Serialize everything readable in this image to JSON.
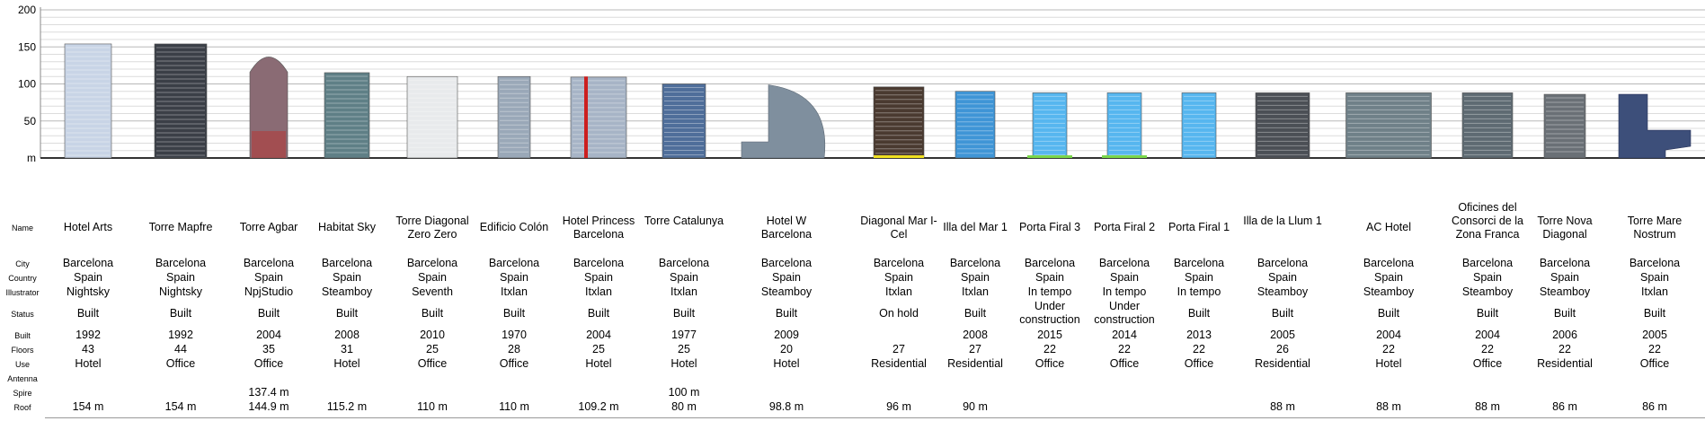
{
  "chart_data": {
    "type": "bar",
    "y_axis": {
      "ylim": [
        0,
        200
      ],
      "ticks": [
        "0",
        "50",
        "100",
        "150",
        "200"
      ],
      "zero_label": "m",
      "unit": "m"
    },
    "grid": true,
    "row_labels": [
      "Name",
      "City",
      "Country",
      "Illustrator",
      "Status",
      "Built",
      "Floors",
      "Use",
      "Antenna",
      "Spire",
      "Roof"
    ],
    "buildings": [
      {
        "name": "Hotel Arts",
        "city": "Barcelona",
        "country": "Spain",
        "illustrator": "Nightsky",
        "status": "Built",
        "built": "1992",
        "floors": "43",
        "use": "Hotel",
        "antenna": "",
        "spire": "",
        "roof": "154 m",
        "height": 154,
        "color": "#c8d4e6"
      },
      {
        "name": "Torre Mapfre",
        "city": "Barcelona",
        "country": "Spain",
        "illustrator": "Nightsky",
        "status": "Built",
        "built": "1992",
        "floors": "44",
        "use": "Office",
        "antenna": "",
        "spire": "",
        "roof": "154 m",
        "height": 154,
        "color": "#3b3f47"
      },
      {
        "name": "Torre Agbar",
        "city": "Barcelona",
        "country": "Spain",
        "illustrator": "NpjStudio",
        "status": "Built",
        "built": "2004",
        "floors": "35",
        "use": "Office",
        "antenna": "",
        "spire": "137.4 m",
        "roof": "144.9 m",
        "height": 144.9,
        "color": "#8a6b74"
      },
      {
        "name": "Habitat Sky",
        "city": "Barcelona",
        "country": "Spain",
        "illustrator": "Steamboy",
        "status": "Built",
        "built": "2008",
        "floors": "31",
        "use": "Hotel",
        "antenna": "",
        "spire": "",
        "roof": "115.2 m",
        "height": 115.2,
        "color": "#5f7f86"
      },
      {
        "name": "Torre Diagonal Zero Zero",
        "city": "Barcelona",
        "country": "Spain",
        "illustrator": "Seventh",
        "status": "Built",
        "built": "2010",
        "floors": "25",
        "use": "Office",
        "antenna": "",
        "spire": "",
        "roof": "110 m",
        "height": 110,
        "color": "#e8eaec"
      },
      {
        "name": "Edificio Colón",
        "city": "Barcelona",
        "country": "Spain",
        "illustrator": "Itxlan",
        "status": "Built",
        "built": "1970",
        "floors": "28",
        "use": "Office",
        "antenna": "",
        "spire": "",
        "roof": "110 m",
        "height": 110,
        "color": "#9aa8b8"
      },
      {
        "name": "Hotel Princess Barcelona",
        "city": "Barcelona",
        "country": "Spain",
        "illustrator": "Itxlan",
        "status": "Built",
        "built": "2004",
        "floors": "25",
        "use": "Hotel",
        "antenna": "",
        "spire": "",
        "roof": "109.2 m",
        "height": 109.2,
        "color": "#a7b4c6"
      },
      {
        "name": "Torre Catalunya",
        "city": "Barcelona",
        "country": "Spain",
        "illustrator": "Itxlan",
        "status": "Built",
        "built": "1977",
        "floors": "25",
        "use": "Hotel",
        "antenna": "",
        "spire": "100 m",
        "roof": "80 m",
        "height": 100,
        "color": "#4f6e9a"
      },
      {
        "name": "Hotel W Barcelona",
        "city": "Barcelona",
        "country": "Spain",
        "illustrator": "Steamboy",
        "status": "Built",
        "built": "2009",
        "floors": "20",
        "use": "Hotel",
        "antenna": "",
        "spire": "",
        "roof": "98.8 m",
        "height": 98.8,
        "color": "#7f8f9e"
      },
      {
        "name": "Diagonal Mar I-Cel",
        "city": "Barcelona",
        "country": "Spain",
        "illustrator": "Itxlan",
        "status": "On hold",
        "built": "",
        "floors": "27",
        "use": "Residential",
        "antenna": "",
        "spire": "",
        "roof": "96 m",
        "height": 96,
        "color": "#4a3a30"
      },
      {
        "name": "Illa del Mar 1",
        "city": "Barcelona",
        "country": "Spain",
        "illustrator": "Itxlan",
        "status": "Built",
        "built": "2008",
        "floors": "27",
        "use": "Residential",
        "antenna": "",
        "spire": "",
        "roof": "90 m",
        "height": 90,
        "color": "#3f95d6"
      },
      {
        "name": "Porta Firal 3",
        "city": "Barcelona",
        "country": "Spain",
        "illustrator": "In tempo",
        "status": "Under construction",
        "built": "2015",
        "floors": "22",
        "use": "Office",
        "antenna": "",
        "spire": "",
        "roof": "",
        "height": 88,
        "color": "#56b6ef"
      },
      {
        "name": "Porta Firal 2",
        "city": "Barcelona",
        "country": "Spain",
        "illustrator": "In tempo",
        "status": "Under construction",
        "built": "2014",
        "floors": "22",
        "use": "Office",
        "antenna": "",
        "spire": "",
        "roof": "",
        "height": 88,
        "color": "#56b6ef"
      },
      {
        "name": "Porta Firal 1",
        "city": "Barcelona",
        "country": "Spain",
        "illustrator": "In tempo",
        "status": "Built",
        "built": "2013",
        "floors": "22",
        "use": "Office",
        "antenna": "",
        "spire": "",
        "roof": "",
        "height": 88,
        "color": "#56b6ef"
      },
      {
        "name": "Illa de la Llum 1",
        "city": "Barcelona",
        "country": "Spain",
        "illustrator": "Steamboy",
        "status": "Built",
        "built": "2005",
        "floors": "26",
        "use": "Residential",
        "antenna": "",
        "spire": "",
        "roof": "88 m",
        "height": 88,
        "color": "#4b4f55"
      },
      {
        "name": "AC Hotel",
        "city": "Barcelona",
        "country": "Spain",
        "illustrator": "Steamboy",
        "status": "Built",
        "built": "2004",
        "floors": "22",
        "use": "Hotel",
        "antenna": "",
        "spire": "",
        "roof": "88 m",
        "height": 88,
        "color": "#6f8088"
      },
      {
        "name": "Oficines del Consorci de la Zona Franca",
        "city": "Barcelona",
        "country": "Spain",
        "illustrator": "Steamboy",
        "status": "Built",
        "built": "2004",
        "floors": "22",
        "use": "Office",
        "antenna": "",
        "spire": "",
        "roof": "88 m",
        "height": 88,
        "color": "#5e6a72"
      },
      {
        "name": "Torre Nova Diagonal",
        "city": "Barcelona",
        "country": "Spain",
        "illustrator": "Steamboy",
        "status": "Built",
        "built": "2006",
        "floors": "22",
        "use": "Residential",
        "antenna": "",
        "spire": "",
        "roof": "86 m",
        "height": 86,
        "color": "#6a7076"
      },
      {
        "name": "Torre Mare Nostrum",
        "city": "Barcelona",
        "country": "Spain",
        "illustrator": "Itxlan",
        "status": "Built",
        "built": "2005",
        "floors": "22",
        "use": "Office",
        "antenna": "",
        "spire": "",
        "roof": "86 m",
        "height": 86,
        "color": "#3d4f7a"
      }
    ]
  }
}
